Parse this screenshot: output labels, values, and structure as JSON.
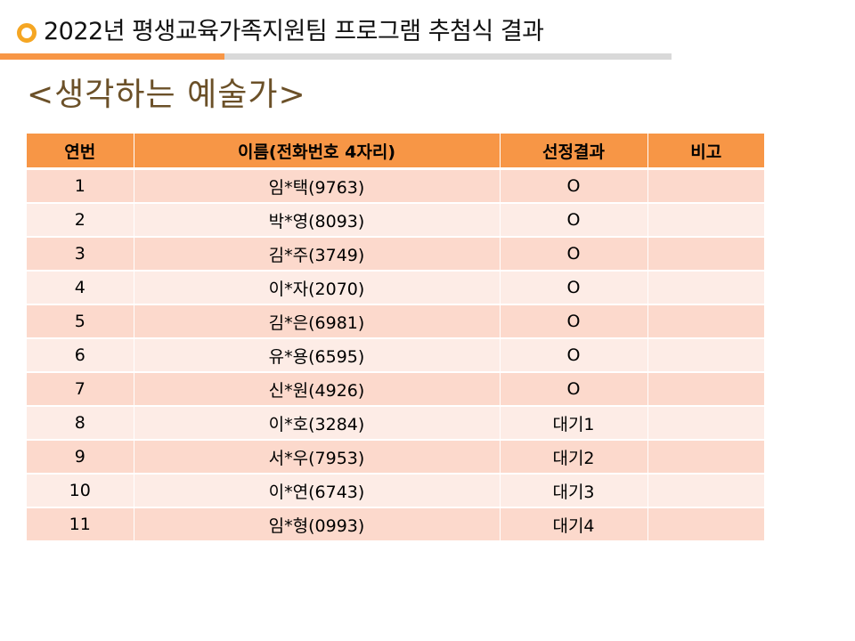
{
  "header": {
    "title": "2022년 평생교육가족지원팀 프로그램  추첨식 결과",
    "accent_color": "#f79646",
    "dot_color": "#f5a623"
  },
  "subtitle": "<생각하는 예술가>",
  "table": {
    "columns": [
      "연번",
      "이름(전화번호 4자리)",
      "선정결과",
      "비고"
    ],
    "header_color": "#f79646",
    "row_colors": [
      "#fcd9cc",
      "#fdece6"
    ],
    "rows": [
      {
        "no": "1",
        "name": "임*택(9763)",
        "result": "O",
        "note": ""
      },
      {
        "no": "2",
        "name": "박*영(8093)",
        "result": "O",
        "note": ""
      },
      {
        "no": "3",
        "name": "김*주(3749)",
        "result": "O",
        "note": ""
      },
      {
        "no": "4",
        "name": "이*자(2070)",
        "result": "O",
        "note": ""
      },
      {
        "no": "5",
        "name": "김*은(6981)",
        "result": "O",
        "note": ""
      },
      {
        "no": "6",
        "name": "유*용(6595)",
        "result": "O",
        "note": ""
      },
      {
        "no": "7",
        "name": "신*원(4926)",
        "result": "O",
        "note": ""
      },
      {
        "no": "8",
        "name": "이*호(3284)",
        "result": "대기1",
        "note": ""
      },
      {
        "no": "9",
        "name": "서*우(7953)",
        "result": "대기2",
        "note": ""
      },
      {
        "no": "10",
        "name": "이*연(6743)",
        "result": "대기3",
        "note": ""
      },
      {
        "no": "11",
        "name": "임*형(0993)",
        "result": "대기4",
        "note": ""
      }
    ]
  }
}
